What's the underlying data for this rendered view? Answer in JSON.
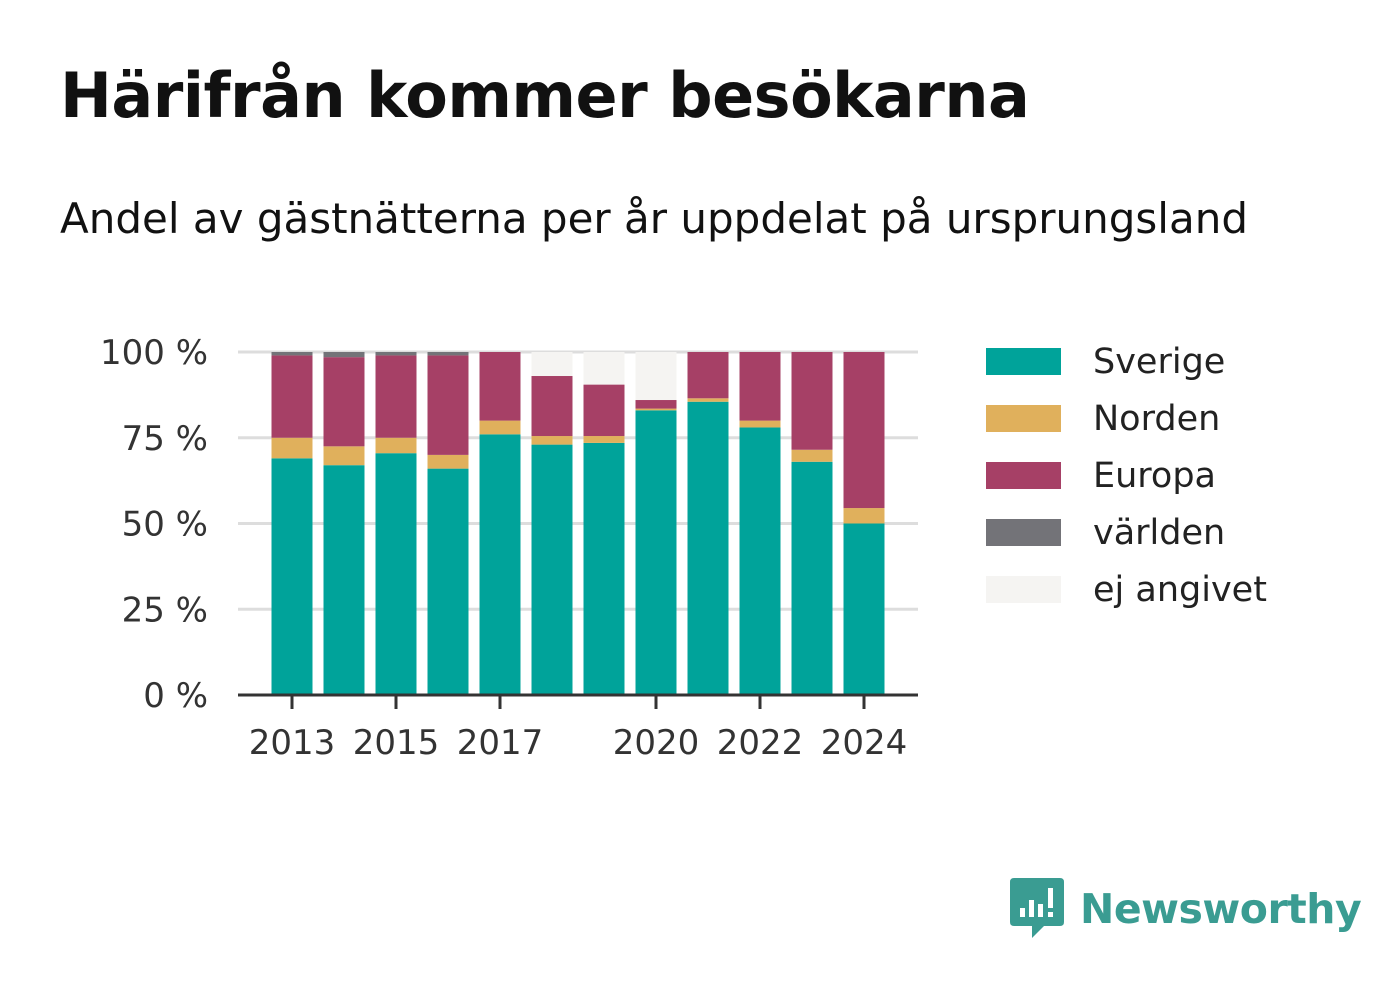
{
  "chart_data": {
    "type": "bar",
    "stacked": true,
    "title": "Härifrån kommer besökarna",
    "subtitle": "Andel av gästnätterna per år uppdelat på ursprungsland",
    "categories": [
      "2013",
      "2014",
      "2015",
      "2016",
      "2017",
      "2018",
      "2019",
      "2020",
      "2021",
      "2022",
      "2023",
      "2024"
    ],
    "x_tick_labels": [
      "2013",
      "2015",
      "2017",
      "2020",
      "2022",
      "2024"
    ],
    "y_ticks": [
      0,
      25,
      50,
      75,
      100
    ],
    "y_tick_labels": [
      "0 %",
      "25 %",
      "50 %",
      "75 %",
      "100 %"
    ],
    "ylim": [
      0,
      100
    ],
    "grid": true,
    "legend_position": "right",
    "series": [
      {
        "name": "Sverige",
        "color": "#00a39a",
        "values": [
          69,
          67,
          70.5,
          66,
          76,
          73,
          73.5,
          83,
          85.5,
          78,
          68,
          50
        ]
      },
      {
        "name": "Norden",
        "color": "#e0b05c",
        "values": [
          6,
          5.5,
          4.5,
          4,
          4,
          2.5,
          2,
          0.5,
          1,
          2,
          3.5,
          4.5
        ]
      },
      {
        "name": "Europa",
        "color": "#a64066",
        "values": [
          24,
          26,
          24,
          29,
          20,
          17.5,
          15,
          2.5,
          13.5,
          20,
          28.5,
          45.5
        ]
      },
      {
        "name": "världen",
        "color": "#737378",
        "values": [
          1,
          1.5,
          1,
          1,
          0,
          0,
          0,
          0,
          0,
          0,
          0,
          0
        ]
      },
      {
        "name": "ej angivet",
        "color": "#f5f4f2",
        "values": [
          0,
          0,
          0,
          0,
          0,
          7,
          9.5,
          14,
          0,
          0,
          0,
          0
        ]
      }
    ]
  },
  "logo": {
    "text": "Newsworthy",
    "icon": "speech-bubble-bar-chart-icon",
    "color": "#3a9c92"
  }
}
